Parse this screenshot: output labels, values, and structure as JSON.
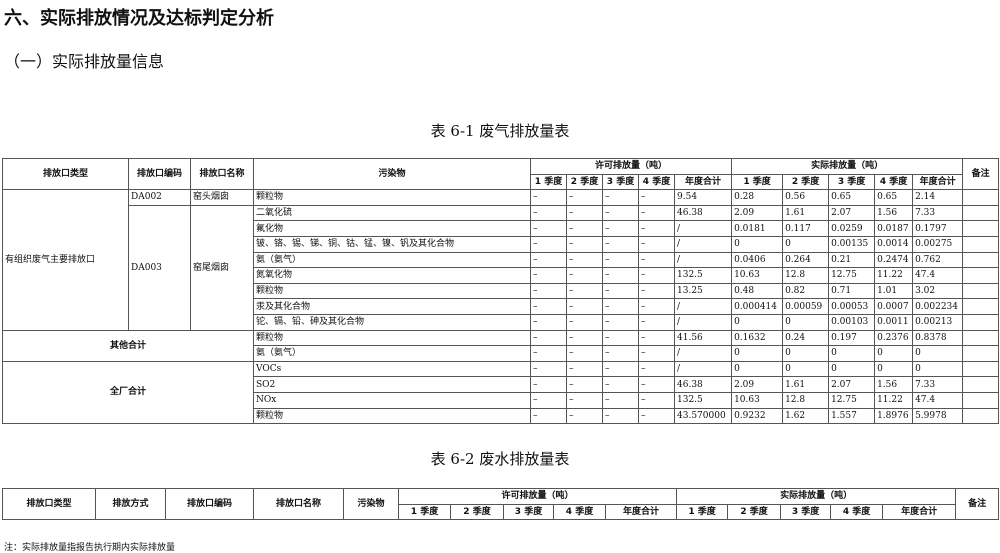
{
  "section_title": "六、实际排放情况及达标判定分析",
  "subsection_title": "（一）实际排放量信息",
  "table1": {
    "caption": "表 6-1  废气排放量表",
    "headers": {
      "type": "排放口类型",
      "code": "排放口编码",
      "name": "排放口名称",
      "pollutant": "污染物",
      "permit": "许可排放量（吨）",
      "actual": "实际排放量（吨）",
      "remark": "备注",
      "q": [
        "1 季度",
        "2 季度",
        "3 季度",
        "4 季度",
        "年度合计"
      ]
    },
    "groups": [
      {
        "type": "有组织废气主要排放口",
        "subgroups": [
          {
            "code": "DA002",
            "name": "窑头烟囱",
            "rows": [
              {
                "pollutant": "颗粒物",
                "permit": [
                  "–",
                  "–",
                  "–",
                  "–",
                  "9.54"
                ],
                "actual": [
                  "0.28",
                  "0.56",
                  "0.65",
                  "0.65",
                  "2.14"
                ]
              }
            ]
          },
          {
            "code": "DA003",
            "name": "窑尾烟囱",
            "rows": [
              {
                "pollutant": "二氧化硫",
                "permit": [
                  "–",
                  "–",
                  "–",
                  "–",
                  "46.38"
                ],
                "actual": [
                  "2.09",
                  "1.61",
                  "2.07",
                  "1.56",
                  "7.33"
                ]
              },
              {
                "pollutant": "氟化物",
                "permit": [
                  "–",
                  "–",
                  "–",
                  "–",
                  "/"
                ],
                "actual": [
                  "0.0181",
                  "0.117",
                  "0.0259",
                  "0.0187",
                  "0.1797"
                ]
              },
              {
                "pollutant": "铍、铬、锡、锑、铜、钴、锰、镍、钒及其化合物",
                "permit": [
                  "–",
                  "–",
                  "–",
                  "–",
                  "/"
                ],
                "actual": [
                  "0",
                  "0",
                  "0.00135",
                  "0.0014",
                  "0.00275"
                ]
              },
              {
                "pollutant": "氨（氨气）",
                "permit": [
                  "–",
                  "–",
                  "–",
                  "–",
                  "/"
                ],
                "actual": [
                  "0.0406",
                  "0.264",
                  "0.21",
                  "0.2474",
                  "0.762"
                ]
              },
              {
                "pollutant": "氮氧化物",
                "permit": [
                  "–",
                  "–",
                  "–",
                  "–",
                  "132.5"
                ],
                "actual": [
                  "10.63",
                  "12.8",
                  "12.75",
                  "11.22",
                  "47.4"
                ]
              },
              {
                "pollutant": "颗粒物",
                "permit": [
                  "–",
                  "–",
                  "–",
                  "–",
                  "13.25"
                ],
                "actual": [
                  "0.48",
                  "0.82",
                  "0.71",
                  "1.01",
                  "3.02"
                ]
              },
              {
                "pollutant": "汞及其化合物",
                "permit": [
                  "–",
                  "–",
                  "–",
                  "–",
                  "/"
                ],
                "actual": [
                  "0.000414",
                  "0.00059",
                  "0.00053",
                  "0.0007",
                  "0.002234"
                ]
              },
              {
                "pollutant": "铊、镉、铅、砷及其化合物",
                "permit": [
                  "–",
                  "–",
                  "–",
                  "–",
                  "/"
                ],
                "actual": [
                  "0",
                  "0",
                  "0.00103",
                  "0.0011",
                  "0.00213"
                ]
              }
            ]
          }
        ]
      },
      {
        "type": "其他合计",
        "rows": [
          {
            "pollutant": "颗粒物",
            "permit": [
              "–",
              "–",
              "–",
              "–",
              "41.56"
            ],
            "actual": [
              "0.1632",
              "0.24",
              "0.197",
              "0.2376",
              "0.8378"
            ]
          },
          {
            "pollutant": "氨（氨气）",
            "permit": [
              "–",
              "–",
              "–",
              "–",
              "/"
            ],
            "actual": [
              "0",
              "0",
              "0",
              "0",
              "0"
            ]
          }
        ]
      },
      {
        "type": "全厂合计",
        "rows": [
          {
            "pollutant": "VOCs",
            "permit": [
              "–",
              "–",
              "–",
              "–",
              "/"
            ],
            "actual": [
              "0",
              "0",
              "0",
              "0",
              "0"
            ]
          },
          {
            "pollutant": "SO2",
            "permit": [
              "–",
              "–",
              "–",
              "–",
              "46.38"
            ],
            "actual": [
              "2.09",
              "1.61",
              "2.07",
              "1.56",
              "7.33"
            ]
          },
          {
            "pollutant": "NOx",
            "permit": [
              "–",
              "–",
              "–",
              "–",
              "132.5"
            ],
            "actual": [
              "10.63",
              "12.8",
              "12.75",
              "11.22",
              "47.4"
            ]
          },
          {
            "pollutant": "颗粒物",
            "permit": [
              "–",
              "–",
              "–",
              "–",
              "43.570000"
            ],
            "actual": [
              "0.9232",
              "1.62",
              "1.557",
              "1.8976",
              "5.9978"
            ]
          }
        ]
      }
    ]
  },
  "table2": {
    "caption": "表 6-2  废水排放量表",
    "headers": {
      "type": "排放口类型",
      "method": "排放方式",
      "code": "排放口编码",
      "name": "排放口名称",
      "pollutant": "污染物",
      "permit": "许可排放量（吨）",
      "actual": "实际排放量（吨）",
      "remark": "备注",
      "q": [
        "1 季度",
        "2 季度",
        "3 季度",
        "4 季度",
        "年度合计"
      ]
    }
  },
  "footnote": "注：实际排放量指报告执行期内实际排放量"
}
